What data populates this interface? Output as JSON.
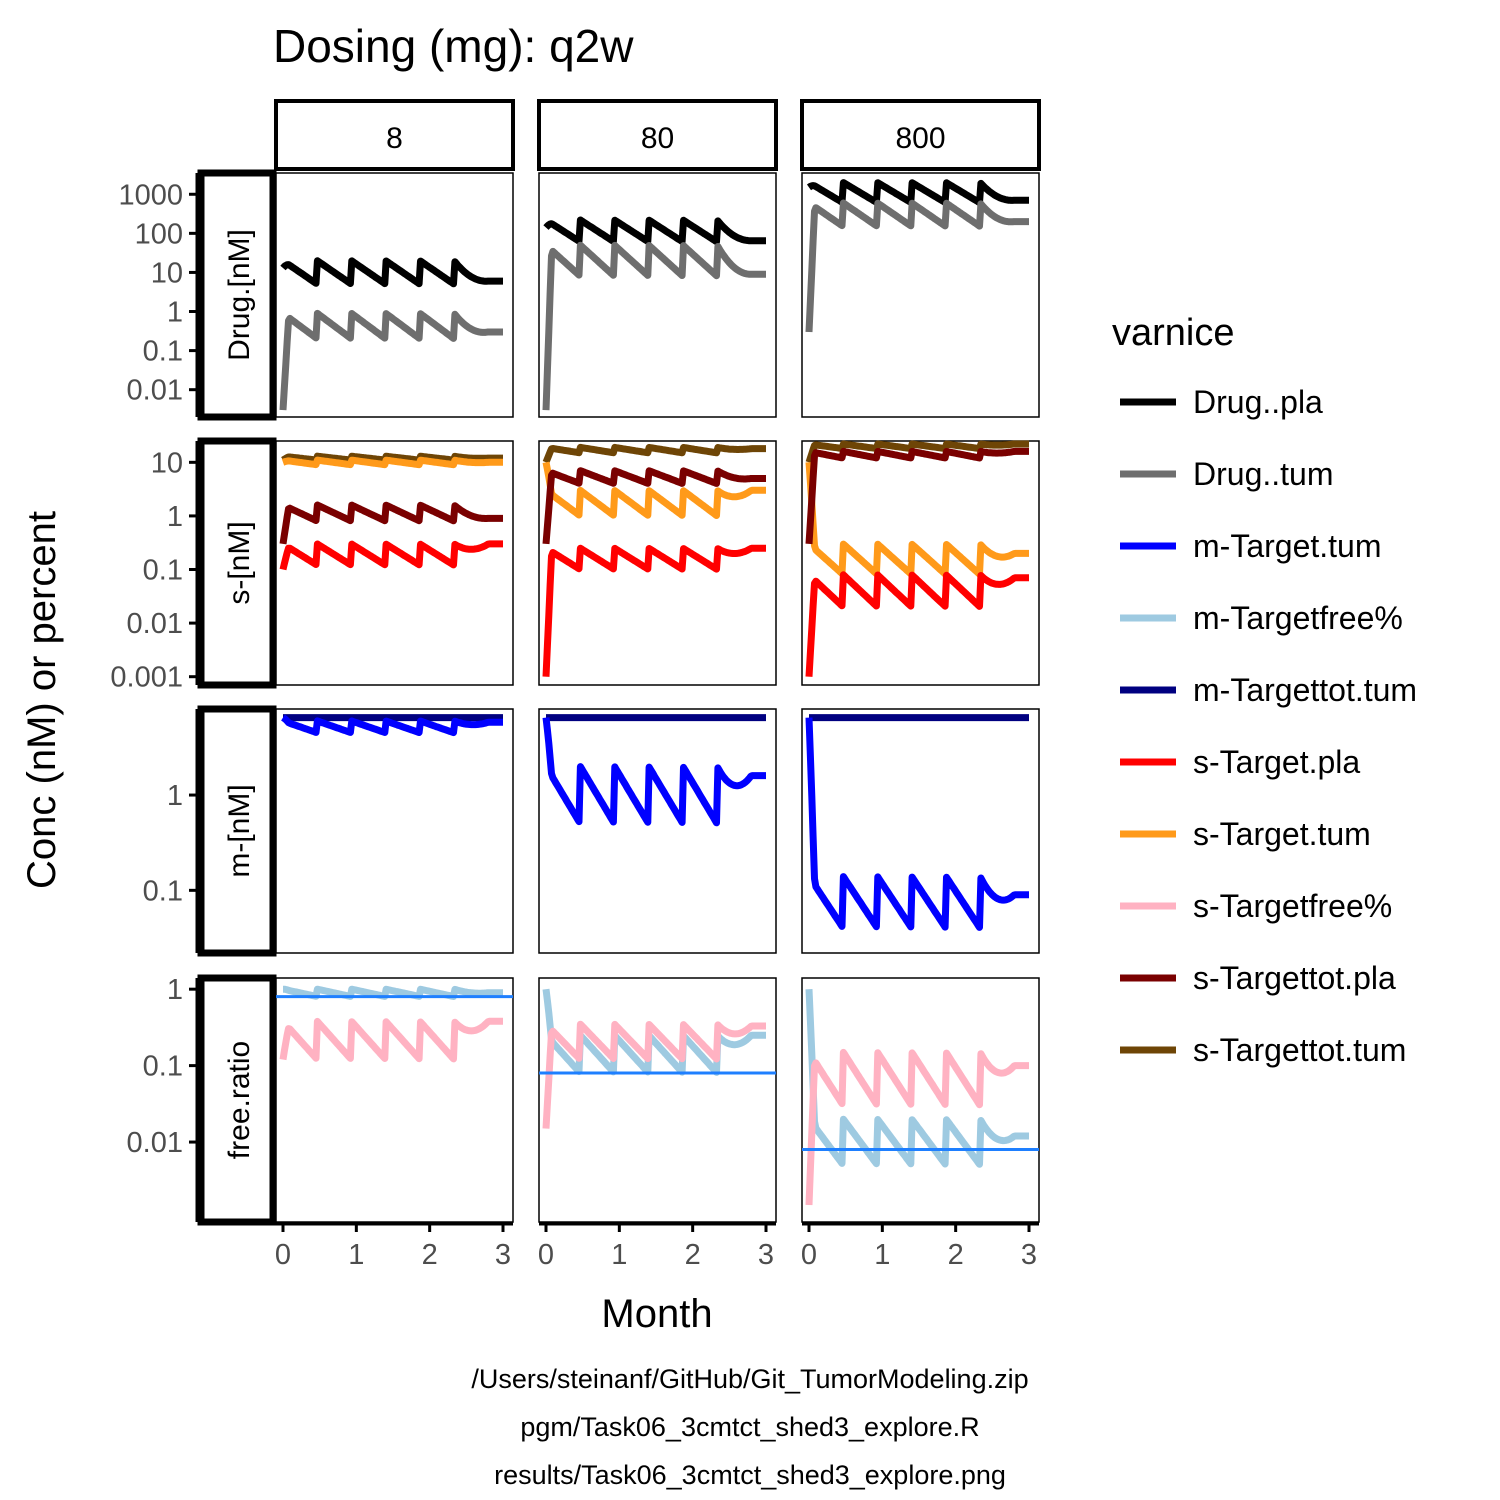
{
  "chart_data": {
    "type": "line",
    "title": "Dosing (mg): q2w",
    "xlabel": "Month",
    "ylabel": "Conc (nM) or percent",
    "x_ticks": [
      0,
      1,
      2,
      3
    ],
    "y_scale": "log10",
    "grid": false,
    "legend_position": "right",
    "legend": {
      "title": "varnice",
      "items": [
        {
          "name": "Drug..pla",
          "color": "#000000"
        },
        {
          "name": "Drug..tum",
          "color": "#6e6e6e"
        },
        {
          "name": "m-Target.tum",
          "color": "#0000ff"
        },
        {
          "name": "m-Targetfree%",
          "color": "#9ecae1"
        },
        {
          "name": "m-Targettot.tum",
          "color": "#000080"
        },
        {
          "name": "s-Target.pla",
          "color": "#ff0000"
        },
        {
          "name": "s-Target.tum",
          "color": "#ff9a1a"
        },
        {
          "name": "s-Targetfree%",
          "color": "#ffb2c2"
        },
        {
          "name": "s-Targettot.pla",
          "color": "#7a0000"
        },
        {
          "name": "s-Targettot.tum",
          "color": "#6e4506"
        }
      ]
    },
    "columns": [
      "8",
      "80",
      "800"
    ],
    "rows": [
      {
        "label": "Drug.[nM]",
        "ylim": [
          0.002,
          3500
        ],
        "ticks": [
          "1000",
          "100",
          "10",
          "1",
          "0.1",
          "0.01"
        ],
        "tick_values": [
          1000,
          100,
          10,
          1,
          0.1,
          0.01
        ]
      },
      {
        "label": "s-[nM]",
        "ylim": [
          0.0007,
          25
        ],
        "ticks": [
          "10",
          "1",
          "0.1",
          "0.01",
          "0.001"
        ],
        "tick_values": [
          10,
          1,
          0.1,
          0.01,
          0.001
        ]
      },
      {
        "label": "m-[nM]",
        "ylim": [
          0.022,
          8
        ],
        "ticks": [
          "1",
          "0.1"
        ],
        "tick_values": [
          1,
          0.1
        ]
      },
      {
        "label": "free.ratio",
        "ylim": [
          0.0009,
          1.4
        ],
        "ticks": [
          "1",
          "0.1",
          "0.01"
        ],
        "tick_values": [
          1,
          0.1,
          0.01
        ]
      }
    ],
    "dose_months": [
      0,
      0.467,
      0.933,
      1.4,
      1.867,
      2.333
    ],
    "month_end": 3,
    "series_ranges": [
      {
        "row": 0,
        "col": 0,
        "series": "Drug..pla",
        "trough": 5,
        "peak": 20,
        "start": 13,
        "end": 6
      },
      {
        "row": 0,
        "col": 0,
        "series": "Drug..tum",
        "trough": 0.2,
        "peak": 0.9,
        "start": 0.003,
        "end": 0.3
      },
      {
        "row": 0,
        "col": 1,
        "series": "Drug..pla",
        "trough": 60,
        "peak": 220,
        "start": 140,
        "end": 65
      },
      {
        "row": 0,
        "col": 1,
        "series": "Drug..tum",
        "trough": 8,
        "peak": 50,
        "start": 0.003,
        "end": 9
      },
      {
        "row": 0,
        "col": 2,
        "series": "Drug..pla",
        "trough": 600,
        "peak": 2000,
        "start": 1500,
        "end": 700
      },
      {
        "row": 0,
        "col": 2,
        "series": "Drug..tum",
        "trough": 150,
        "peak": 600,
        "start": 0.3,
        "end": 200
      },
      {
        "row": 1,
        "col": 0,
        "series": "s-Targettot.tum",
        "trough": 11,
        "peak": 13,
        "start": 11,
        "end": 12
      },
      {
        "row": 1,
        "col": 0,
        "series": "s-Target.tum",
        "trough": 9,
        "peak": 11,
        "start": 10,
        "end": 10
      },
      {
        "row": 1,
        "col": 0,
        "series": "s-Targettot.pla",
        "trough": 0.8,
        "peak": 1.6,
        "start": 0.3,
        "end": 0.9
      },
      {
        "row": 1,
        "col": 0,
        "series": "s-Target.pla",
        "trough": 0.12,
        "peak": 0.3,
        "start": 0.1,
        "end": 0.3
      },
      {
        "row": 1,
        "col": 1,
        "series": "s-Targettot.tum",
        "trough": 15,
        "peak": 19,
        "start": 10,
        "end": 18
      },
      {
        "row": 1,
        "col": 1,
        "series": "s-Target.tum",
        "trough": 1,
        "peak": 3,
        "start": 10,
        "end": 3
      },
      {
        "row": 1,
        "col": 1,
        "series": "s-Targettot.pla",
        "trough": 4,
        "peak": 7,
        "start": 0.3,
        "end": 5
      },
      {
        "row": 1,
        "col": 1,
        "series": "s-Target.pla",
        "trough": 0.1,
        "peak": 0.25,
        "start": 0.001,
        "end": 0.25
      },
      {
        "row": 1,
        "col": 2,
        "series": "s-Targettot.tum",
        "trough": 18,
        "peak": 22,
        "start": 10,
        "end": 22
      },
      {
        "row": 1,
        "col": 2,
        "series": "s-Target.tum",
        "trough": 0.08,
        "peak": 0.3,
        "start": 10,
        "end": 0.2
      },
      {
        "row": 1,
        "col": 2,
        "series": "s-Targettot.pla",
        "trough": 12,
        "peak": 16,
        "start": 0.3,
        "end": 16
      },
      {
        "row": 1,
        "col": 2,
        "series": "s-Target.pla",
        "trough": 0.02,
        "peak": 0.08,
        "start": 0.001,
        "end": 0.07
      },
      {
        "row": 2,
        "col": 0,
        "series": "m-Targettot.tum",
        "trough": 6.5,
        "peak": 6.5,
        "start": 6.5,
        "end": 6.5
      },
      {
        "row": 2,
        "col": 0,
        "series": "m-Target.tum",
        "trough": 4.5,
        "peak": 6,
        "start": 6.5,
        "end": 5.8
      },
      {
        "row": 2,
        "col": 1,
        "series": "m-Targettot.tum",
        "trough": 6.5,
        "peak": 6.5,
        "start": 6.5,
        "end": 6.5
      },
      {
        "row": 2,
        "col": 1,
        "series": "m-Target.tum",
        "trough": 0.5,
        "peak": 2,
        "start": 6.5,
        "end": 1.6
      },
      {
        "row": 2,
        "col": 2,
        "series": "m-Targettot.tum",
        "trough": 6.5,
        "peak": 6.5,
        "start": 6.5,
        "end": 6.5
      },
      {
        "row": 2,
        "col": 2,
        "series": "m-Target.tum",
        "trough": 0.04,
        "peak": 0.14,
        "start": 6.5,
        "end": 0.09
      },
      {
        "row": 3,
        "col": 0,
        "series": "m-Targetfree%",
        "trough": 0.8,
        "peak": 1,
        "start": 1,
        "end": 0.9
      },
      {
        "row": 3,
        "col": 0,
        "series": "s-Targetfree%",
        "trough": 0.12,
        "peak": 0.38,
        "start": 0.12,
        "end": 0.38
      },
      {
        "row": 3,
        "col": 1,
        "series": "m-Targetfree%",
        "trough": 0.08,
        "peak": 0.25,
        "start": 1,
        "end": 0.25
      },
      {
        "row": 3,
        "col": 1,
        "series": "s-Targetfree%",
        "trough": 0.12,
        "peak": 0.35,
        "start": 0.015,
        "end": 0.33
      },
      {
        "row": 3,
        "col": 2,
        "series": "m-Targetfree%",
        "trough": 0.005,
        "peak": 0.02,
        "start": 1,
        "end": 0.012
      },
      {
        "row": 3,
        "col": 2,
        "series": "s-Targetfree%",
        "trough": 0.03,
        "peak": 0.15,
        "start": 0.0015,
        "end": 0.1
      }
    ],
    "reference_lines": [
      {
        "row": 3,
        "col": 0,
        "value": 0.8,
        "color": "#1e7fff"
      },
      {
        "row": 3,
        "col": 1,
        "value": 0.08,
        "color": "#1e7fff"
      },
      {
        "row": 3,
        "col": 2,
        "value": 0.008,
        "color": "#1e7fff"
      }
    ]
  },
  "caption": {
    "line1": "/Users/steinanf/GitHub/Git_TumorModeling.zip",
    "line2": "pgm/Task06_3cmtct_shed3_explore.R",
    "line3": "results/Task06_3cmtct_shed3_explore.png"
  }
}
